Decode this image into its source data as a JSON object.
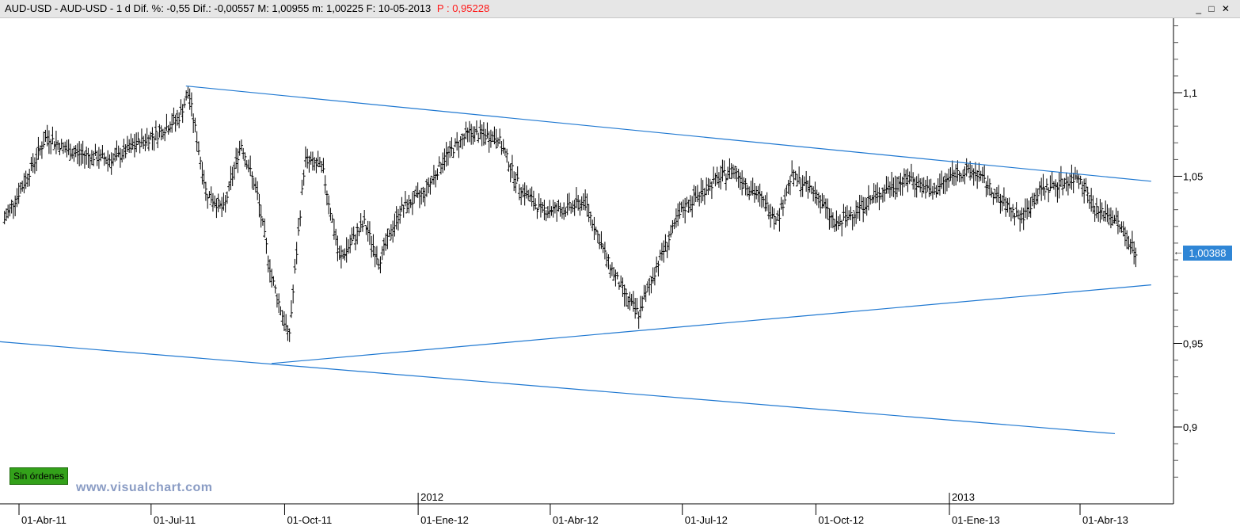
{
  "window": {
    "title": "AUD-USD - AUD-USD - 1 d Dif. %: -0,55 Dif.: -0,00557 M: 1,00955 m: 1,00225 F: 10-05-2013",
    "price_label": "P : 0,95228",
    "controls": "_ □ ✕"
  },
  "badges": {
    "orders": "Sin órdenes",
    "watermark": "www.visualchart.com",
    "current_price": "1,00388"
  },
  "colors": {
    "trendline": "#1f78d1",
    "bars": "#000000",
    "price_tag": "#2f86d6",
    "orders_badge": "#33a11a",
    "price_label": "#ff1a1a"
  },
  "chart_data": {
    "type": "ohlc",
    "ylim": [
      0.86,
      1.15
    ],
    "y_ticks": [
      {
        "value": 1.1,
        "label": "1,1"
      },
      {
        "value": 1.05,
        "label": "1,05"
      },
      {
        "value": 0.95,
        "label": "0,95"
      },
      {
        "value": 0.9,
        "label": "0,9"
      }
    ],
    "x_ticks": [
      "01-Abr-11",
      "01-Jul-11",
      "01-Oct-11",
      "01-Ene-12",
      "01-Abr-12",
      "01-Jul-12",
      "01-Oct-12",
      "01-Ene-13",
      "01-Abr-13"
    ],
    "year_labels": [
      "2012",
      "2013"
    ],
    "series": [
      {
        "x": [
          "2011-03-22",
          "2011-04-05",
          "2011-04-20",
          "2011-05-05",
          "2011-05-20",
          "2011-06-05",
          "2011-06-22",
          "2011-07-05",
          "2011-07-20",
          "2011-07-27",
          "2011-08-08",
          "2011-08-20",
          "2011-09-01",
          "2011-09-12",
          "2011-09-22",
          "2011-10-04",
          "2011-10-15",
          "2011-10-27",
          "2011-11-08",
          "2011-11-25",
          "2011-12-05",
          "2011-12-20",
          "2012-01-05",
          "2012-01-20",
          "2012-02-05",
          "2012-02-25",
          "2012-03-10",
          "2012-03-25",
          "2012-04-10",
          "2012-04-25",
          "2012-05-10",
          "2012-05-25",
          "2012-06-01",
          "2012-06-15",
          "2012-07-01",
          "2012-07-20",
          "2012-08-05",
          "2012-08-20",
          "2012-09-05",
          "2012-09-14",
          "2012-10-01",
          "2012-10-15",
          "2012-11-01",
          "2012-11-20",
          "2012-12-05",
          "2012-12-20",
          "2013-01-05",
          "2013-01-20",
          "2013-02-05",
          "2013-02-20",
          "2013-03-05",
          "2013-03-20",
          "2013-04-01",
          "2013-04-11",
          "2013-04-25",
          "2013-05-10"
        ],
        "close": [
          1.024,
          1.047,
          1.074,
          1.065,
          1.062,
          1.06,
          1.07,
          1.075,
          1.085,
          1.1,
          1.04,
          1.03,
          1.07,
          1.04,
          0.99,
          0.953,
          1.06,
          1.055,
          1.0,
          1.022,
          0.999,
          1.03,
          1.04,
          1.062,
          1.076,
          1.073,
          1.045,
          1.03,
          1.03,
          1.035,
          1.0,
          0.975,
          0.968,
          1.0,
          1.03,
          1.045,
          1.054,
          1.04,
          1.025,
          1.05,
          1.04,
          1.02,
          1.032,
          1.043,
          1.049,
          1.04,
          1.052,
          1.052,
          1.035,
          1.025,
          1.042,
          1.046,
          1.05,
          1.03,
          1.025,
          1.004
        ]
      }
    ],
    "trendlines": [
      {
        "from": [
          "2011-07-25",
          1.104
        ],
        "to": [
          "2013-05-20",
          1.047
        ]
      },
      {
        "from": [
          "2011-09-22",
          0.938
        ],
        "to": [
          "2013-05-20",
          0.985
        ]
      },
      {
        "from": [
          "2011-03-05",
          0.952
        ],
        "to": [
          "2013-04-25",
          0.896
        ]
      }
    ]
  }
}
